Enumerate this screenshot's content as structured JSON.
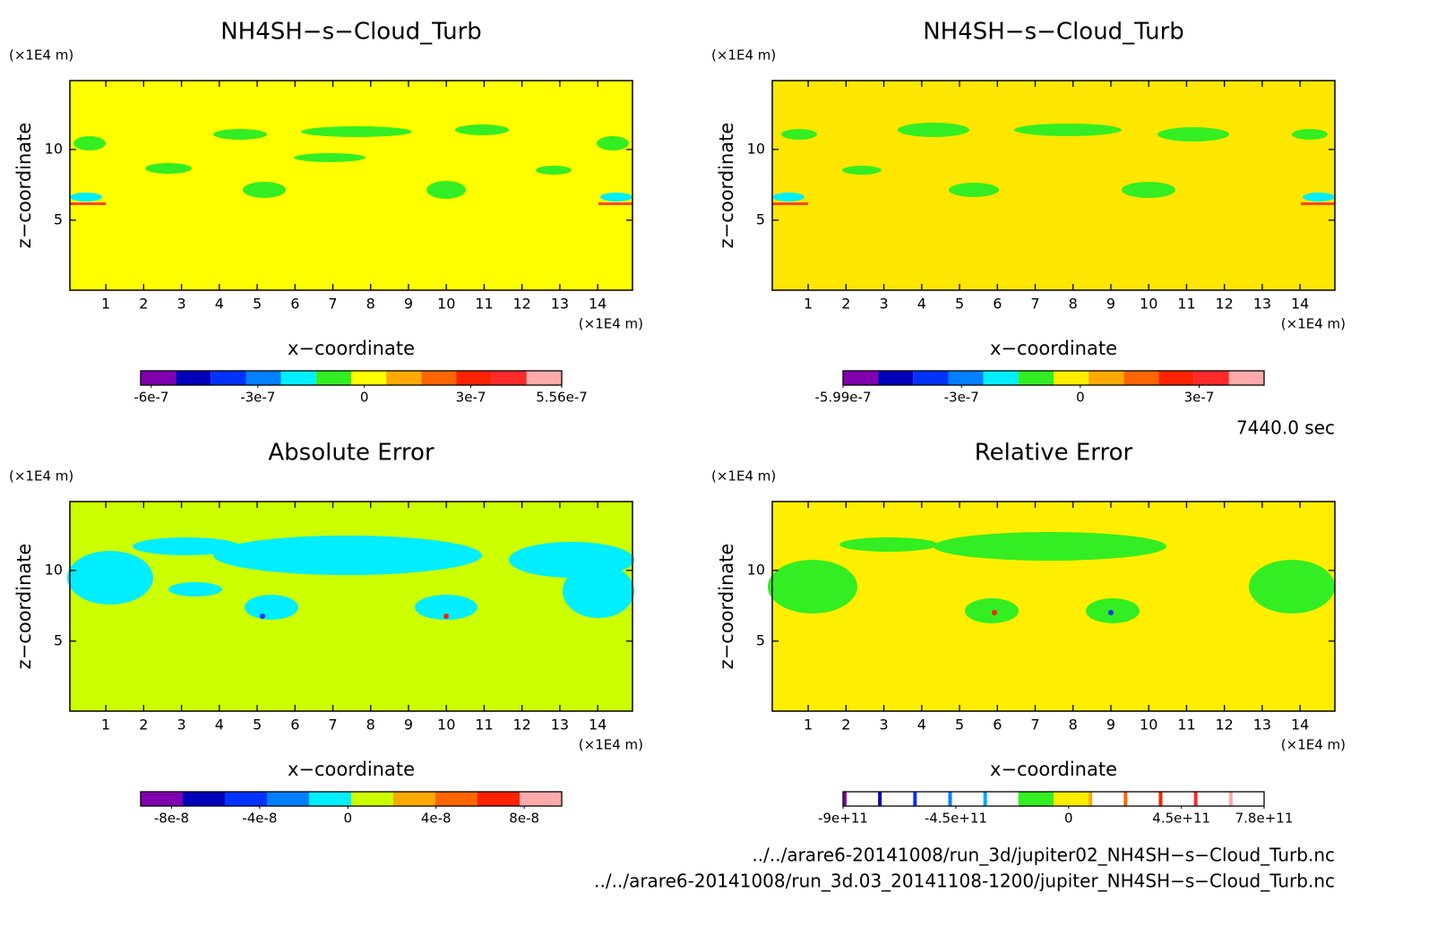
{
  "chart_data": [
    {
      "type": "contour",
      "title": "NH4SH−s−Cloud_Turb",
      "xlabel": "x−coordinate",
      "ylabel": "z−coordinate",
      "x_unit": "(×1E4 m)",
      "y_unit": "(×1E4 m)",
      "xlim": [
        0.05,
        14.92
      ],
      "ylim": [
        0.05,
        14.87
      ],
      "xticks": [
        1,
        2,
        3,
        4,
        5,
        6,
        7,
        8,
        9,
        10,
        11,
        12,
        13,
        14
      ],
      "yticks": [
        5,
        10
      ],
      "field_color": "#ffff00",
      "colorbar": {
        "clim": [
          -6.3e-07,
          5.56e-07
        ],
        "ticks": [
          -6e-07,
          -3e-07,
          0,
          3e-07,
          5.56e-07
        ],
        "colors": [
          "#8000b0",
          "#0000bb",
          "#0033ff",
          "#0080ff",
          "#00eeff",
          "#33ee22",
          "#ffff00",
          "#ffaa00",
          "#ff6600",
          "#ff2200",
          "#ff2a2a",
          "#ffaaaa"
        ]
      }
    },
    {
      "type": "contour",
      "title": "NH4SH−s−Cloud_Turb",
      "xlabel": "x−coordinate",
      "ylabel": "z−coordinate",
      "x_unit": "(×1E4 m)",
      "y_unit": "(×1E4 m)",
      "xlim": [
        0.05,
        14.92
      ],
      "ylim": [
        0.05,
        14.87
      ],
      "xticks": [
        1,
        2,
        3,
        4,
        5,
        6,
        7,
        8,
        9,
        10,
        11,
        12,
        13,
        14
      ],
      "yticks": [
        5,
        10
      ],
      "field_color": "#fde600",
      "colorbar": {
        "clim": [
          -5.99e-07,
          4.64e-07
        ],
        "ticks": [
          -5.99e-07,
          -3e-07,
          0,
          3e-07
        ],
        "colors": [
          "#8000b0",
          "#0000bb",
          "#0033ff",
          "#0080ff",
          "#00eeff",
          "#33ee22",
          "#ffee00",
          "#ffaa00",
          "#ff6600",
          "#ff2200",
          "#ff2a2a",
          "#ffaaaa"
        ]
      }
    },
    {
      "type": "contour",
      "title": "Absolute Error",
      "xlabel": "x−coordinate",
      "ylabel": "z−coordinate",
      "x_unit": "(×1E4 m)",
      "y_unit": "(×1E4 m)",
      "xlim": [
        0.05,
        14.92
      ],
      "ylim": [
        0.05,
        14.87
      ],
      "xticks": [
        1,
        2,
        3,
        4,
        5,
        6,
        7,
        8,
        9,
        10,
        11,
        12,
        13,
        14
      ],
      "yticks": [
        5,
        10
      ],
      "field_color": "#ccff00",
      "colorbar": {
        "clim": [
          -9.4e-08,
          9.7e-08
        ],
        "ticks": [
          -8e-08,
          -4e-08,
          0,
          4e-08,
          8e-08
        ],
        "colors": [
          "#8000b0",
          "#0000bb",
          "#0033ff",
          "#0080ff",
          "#00eeff",
          "#ccff00",
          "#ffaa00",
          "#ff6600",
          "#ff2200",
          "#ffaaaa"
        ]
      }
    },
    {
      "type": "contour",
      "title": "Relative Error",
      "xlabel": "x−coordinate",
      "ylabel": "z−coordinate",
      "x_unit": "(×1E4 m)",
      "y_unit": "(×1E4 m)",
      "xlim": [
        0.05,
        14.92
      ],
      "ylim": [
        0.05,
        14.87
      ],
      "xticks": [
        1,
        2,
        3,
        4,
        5,
        6,
        7,
        8,
        9,
        10,
        11,
        12,
        13,
        14
      ],
      "yticks": [
        5,
        10
      ],
      "field_color": "#ffee00",
      "colorbar": {
        "clim": [
          -900000000000.0,
          780000000000.0
        ],
        "ticks": [
          {
            "value": -900000000000.0,
            "label": "-9e+11"
          },
          {
            "value": -450000000000.0,
            "label": "-4.5e+11"
          },
          0,
          {
            "value": 450000000000.0,
            "label": "4.5e+11"
          },
          {
            "value": 780000000000.0,
            "label": "7.8e+11"
          }
        ],
        "colors": [
          "#ffffff",
          "#ffffff",
          "#ffffff",
          "#ffffff",
          "#ffffff",
          "#33ee22",
          "#ffee00",
          "#ffffff",
          "#ffffff",
          "#ffffff",
          "#ffffff",
          "#ffffff"
        ],
        "line_colors": [
          "#8000b0",
          "#0000bb",
          "#0033ff",
          "#0080ff",
          "#00aaff",
          "#33ee22",
          "#ffee00",
          "#ffaa00",
          "#ff6600",
          "#ff2200",
          "#ff2a2a",
          "#ffaaaa"
        ]
      }
    }
  ],
  "annotations": {
    "time": "7440.0 sec",
    "files": [
      "../../arare6-20141008/run_3d/jupiter02_NH4SH−s−Cloud_Turb.nc",
      "../../arare6-20141008/run_3d.03_20141108-1200/jupiter_NH4SH−s−Cloud_Turb.nc"
    ]
  }
}
